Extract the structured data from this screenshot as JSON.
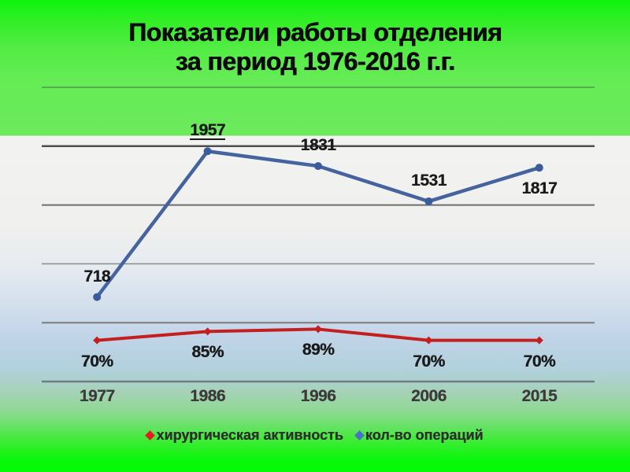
{
  "slide": {
    "title_line1": "Показатели работы отделения",
    "title_line2": "за период 1976-2016 г.г."
  },
  "colors": {
    "top_green": "#0df50d",
    "band_green": "#6cea5c",
    "bottom_green": "#04fb04",
    "plot_gray": "#f0f0ee",
    "plot_blue": "#c0d4e8",
    "surgical_red": "#c41e1e",
    "operations_blue": "#44639f",
    "gridline_gray": "#6e6e6e",
    "axis_line_slate": "#6d7b87"
  },
  "chart_data": {
    "type": "line",
    "title": "Показатели работы отделения за период 1976-2016 г.г.",
    "categories": [
      "1977",
      "1986",
      "1996",
      "2006",
      "2015"
    ],
    "series": [
      {
        "name": "хирургическая активность",
        "color": "#c41e1e",
        "marker": "diamond",
        "axis": "secondary",
        "values": [
          70,
          85,
          89,
          70,
          70
        ],
        "data_labels": [
          "70%",
          "85%",
          "89%",
          "70%",
          "70%"
        ],
        "label_positions": [
          "below",
          "below",
          "below",
          "below",
          "below"
        ],
        "underlined_label_index": -1
      },
      {
        "name": "кол-во операций",
        "color": "#44639f",
        "marker": "circle",
        "axis": "primary",
        "values": [
          718,
          1957,
          1831,
          1531,
          1817
        ],
        "data_labels": [
          "718",
          "1957",
          "1831",
          "1531",
          "1817"
        ],
        "label_positions": [
          "above",
          "above",
          "above",
          "above",
          "below"
        ],
        "underlined_label_index": 1
      }
    ],
    "primary_axis": {
      "min": 0,
      "max": 2500,
      "gridline_step": 500,
      "labels_visible": false
    },
    "secondary_axis": {
      "min": 0,
      "max": 500,
      "labels_visible": false
    },
    "grid": true,
    "legend_position": "bottom",
    "xlabel": "",
    "ylabel": ""
  }
}
